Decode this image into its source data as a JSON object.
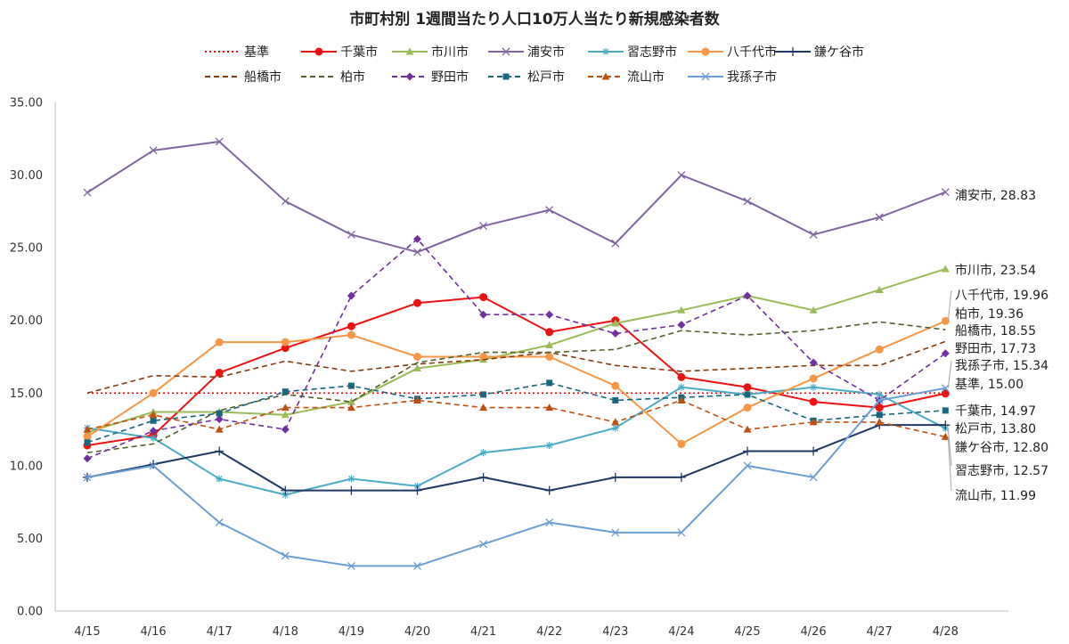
{
  "chart_data": {
    "type": "line",
    "title": "市町村別 1週間当たり人口10万人当たり新規感染者数",
    "xlabel": "",
    "ylabel": "",
    "categories": [
      "4/15",
      "4/16",
      "4/17",
      "4/18",
      "4/19",
      "4/20",
      "4/21",
      "4/22",
      "4/23",
      "4/24",
      "4/25",
      "4/26",
      "4/27",
      "4/28"
    ],
    "ylim": [
      0,
      35
    ],
    "yticks": [
      "0.00",
      "5.00",
      "10.00",
      "15.00",
      "20.00",
      "25.00",
      "30.00",
      "35.00"
    ],
    "grid": false,
    "legend_position": "top",
    "series": [
      {
        "name": "基準",
        "color": "#ff0000",
        "dash": "dot",
        "marker": "none",
        "values": [
          15,
          15,
          15,
          15,
          15,
          15,
          15,
          15,
          15,
          15,
          15,
          15,
          15,
          15
        ],
        "end_label": "基準, 15.00"
      },
      {
        "name": "千葉市",
        "color": "#ee1111",
        "dash": "solid",
        "marker": "circle",
        "values": [
          11.4,
          12.1,
          16.4,
          18.1,
          19.6,
          21.2,
          21.6,
          19.2,
          20.0,
          16.1,
          15.4,
          14.4,
          14.0,
          14.97
        ],
        "end_label": "千葉市, 14.97"
      },
      {
        "name": "市川市",
        "color": "#9bbb59",
        "dash": "solid",
        "marker": "triangle",
        "values": [
          12.3,
          13.7,
          13.7,
          13.5,
          14.4,
          16.7,
          17.3,
          18.3,
          19.8,
          20.7,
          21.7,
          20.7,
          22.1,
          23.54
        ],
        "end_label": "市川市, 23.54"
      },
      {
        "name": "浦安市",
        "color": "#8064a2",
        "dash": "solid",
        "marker": "x",
        "values": [
          28.8,
          31.7,
          32.3,
          28.2,
          25.9,
          24.7,
          26.5,
          27.6,
          25.3,
          30.0,
          28.2,
          25.9,
          27.1,
          28.83
        ],
        "end_label": "浦安市, 28.83"
      },
      {
        "name": "習志野市",
        "color": "#4bacc6",
        "dash": "solid",
        "marker": "star",
        "values": [
          12.6,
          11.9,
          9.1,
          8.0,
          9.1,
          8.6,
          10.9,
          11.4,
          12.6,
          15.4,
          14.9,
          15.4,
          14.9,
          12.57
        ],
        "end_label": "習志野市, 12.57"
      },
      {
        "name": "八千代市",
        "color": "#f79646",
        "dash": "solid",
        "marker": "circle",
        "values": [
          12.0,
          15.0,
          18.5,
          18.5,
          19.0,
          17.5,
          17.5,
          17.5,
          15.5,
          11.5,
          14.0,
          16.0,
          18.0,
          19.96
        ],
        "end_label": "八千代市, 19.96"
      },
      {
        "name": "鎌ケ谷市",
        "color": "#1f3864",
        "dash": "solid",
        "marker": "plus",
        "values": [
          9.2,
          10.1,
          11.0,
          8.3,
          8.3,
          8.3,
          9.2,
          8.3,
          9.2,
          9.2,
          11.0,
          11.0,
          12.8,
          12.8
        ],
        "end_label": "鎌ケ谷市, 12.80"
      },
      {
        "name": "船橋市",
        "color": "#843c0c",
        "dash": "dash",
        "marker": "none",
        "values": [
          15.0,
          16.2,
          16.1,
          17.2,
          16.5,
          17.0,
          17.3,
          17.8,
          16.9,
          16.5,
          16.7,
          16.9,
          16.9,
          18.55
        ],
        "end_label": "船橋市, 18.55"
      },
      {
        "name": "柏市",
        "color": "#4f6228",
        "dash": "dash",
        "marker": "none",
        "values": [
          10.9,
          11.5,
          13.8,
          14.9,
          14.4,
          17.1,
          17.8,
          17.8,
          18.0,
          19.3,
          19.0,
          19.3,
          19.9,
          19.36
        ],
        "end_label": "柏市, 19.36"
      },
      {
        "name": "野田市",
        "color": "#7030a0",
        "dash": "dash",
        "marker": "diamond",
        "values": [
          10.5,
          12.4,
          13.2,
          12.5,
          21.7,
          25.6,
          20.4,
          20.4,
          19.1,
          19.7,
          21.7,
          17.1,
          14.5,
          17.73
        ],
        "end_label": "野田市, 17.73"
      },
      {
        "name": "松戸市",
        "color": "#17677f",
        "dash": "dash",
        "marker": "square",
        "values": [
          11.6,
          13.1,
          13.6,
          15.1,
          15.5,
          14.6,
          14.9,
          15.7,
          14.5,
          14.7,
          14.9,
          13.1,
          13.5,
          13.8
        ],
        "end_label": "松戸市, 13.80"
      },
      {
        "name": "流山市",
        "color": "#c05010",
        "dash": "dash",
        "marker": "triangle",
        "values": [
          12.5,
          13.5,
          12.5,
          14.0,
          14.0,
          14.5,
          14.0,
          14.0,
          13.0,
          14.5,
          12.5,
          13.0,
          13.0,
          11.99
        ],
        "end_label": "流山市, 11.99"
      },
      {
        "name": "我孫子市",
        "color": "#6a9ed6",
        "dash": "solid",
        "marker": "x",
        "values": [
          9.2,
          10.0,
          6.1,
          3.8,
          3.1,
          3.1,
          4.6,
          6.1,
          5.4,
          5.4,
          10.0,
          9.2,
          14.5,
          15.34
        ],
        "end_label": "我孫子市, 15.34"
      }
    ]
  }
}
